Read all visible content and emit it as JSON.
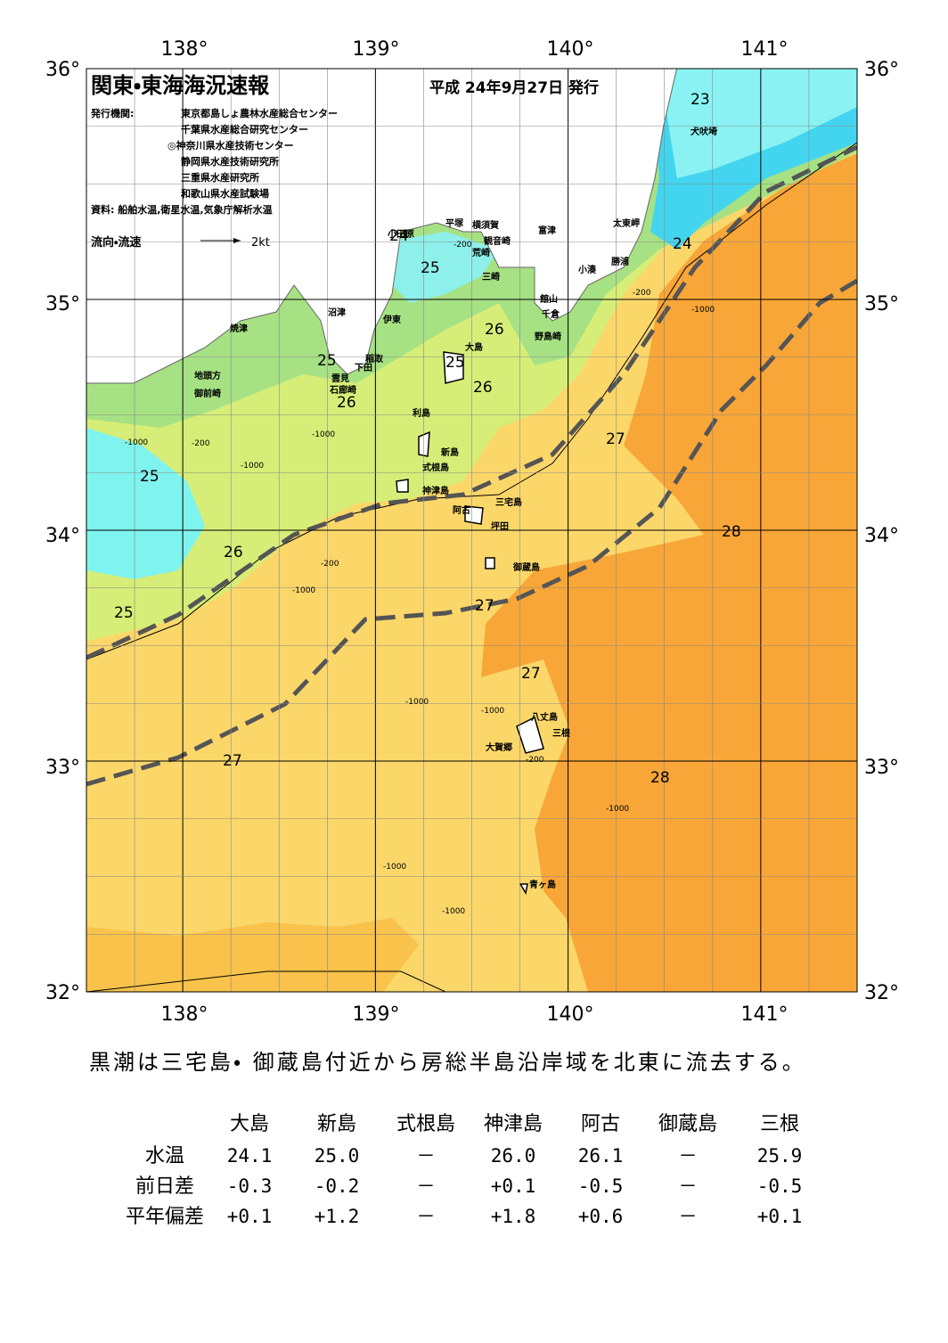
{
  "header": {
    "title": "関東・東海海況速報",
    "date": "平成 24年9月27日 発行",
    "publisher_label": "発行機関:",
    "publishers": [
      "東京都島しょ農林水産総合センター",
      "千葉県水産総合研究センター",
      "◎神奈川県水産技術センター",
      "静岡県水産技術研究所",
      "三重県水産研究所",
      "和歌山県水産試験場"
    ],
    "source": "資料: 船舶水温,衛星水温,気象庁解析水温"
  },
  "legend": {
    "flow": "流向・流速",
    "scale": "2kt"
  },
  "axes": {
    "top": [
      "138°",
      "139°",
      "140°",
      "141°"
    ],
    "bottom": [
      "138°",
      "139°",
      "140°",
      "141°"
    ],
    "left": [
      "36°",
      "35°",
      "34°",
      "33°",
      "32°"
    ],
    "right": [
      "36°",
      "35°",
      "34°",
      "33°",
      "32°"
    ]
  },
  "places": [
    "小田原",
    "平塚",
    "横須賀",
    "観音崎",
    "荒崎",
    "三崎",
    "富津",
    "太東岬",
    "勝浦",
    "小湊",
    "館山",
    "千倉",
    "野島崎",
    "沼津",
    "伊東",
    "焼津",
    "稲取",
    "下田",
    "雲見",
    "石廊崎",
    "地頭方",
    "御前崎",
    "大島",
    "利島",
    "新島",
    "式根島",
    "神津島",
    "三宅島",
    "阿古",
    "坪田",
    "御蔵島",
    "八丈島",
    "三根",
    "大賀郷",
    "青ヶ島",
    "犬吠埼"
  ],
  "contour_labels": [
    "23",
    "24",
    "24",
    "25",
    "25",
    "25",
    "25",
    "25",
    "26",
    "26",
    "26",
    "26",
    "27",
    "27",
    "27",
    "27",
    "28",
    "28"
  ],
  "depth_labels": [
    "-200",
    "-200",
    "-1000",
    "-1000",
    "-1000",
    "-200",
    "-1000",
    "-200",
    "-1000",
    "-1000",
    "-1000",
    "-1000",
    "-1000",
    "-200",
    "-1000"
  ],
  "summary": "黒潮は三宅島・ 御蔵島付近から房総半島沿岸域を北東に流去する。",
  "table": {
    "columns": [
      "大島",
      "新島",
      "式根島",
      "神津島",
      "阿古",
      "御蔵島",
      "三根"
    ],
    "rows": [
      {
        "label": "水温",
        "cells": [
          "24.1",
          "25.0",
          "－",
          "26.0",
          "26.1",
          "－",
          "25.9"
        ]
      },
      {
        "label": "前日差",
        "cells": [
          "-0.3",
          "-0.2",
          "－",
          "+0.1",
          "-0.5",
          "－",
          "-0.5"
        ]
      },
      {
        "label": "平年偏差",
        "cells": [
          "+0.1",
          "+1.2",
          "－",
          "+1.8",
          "+0.6",
          "－",
          "+0.1"
        ]
      }
    ]
  }
}
